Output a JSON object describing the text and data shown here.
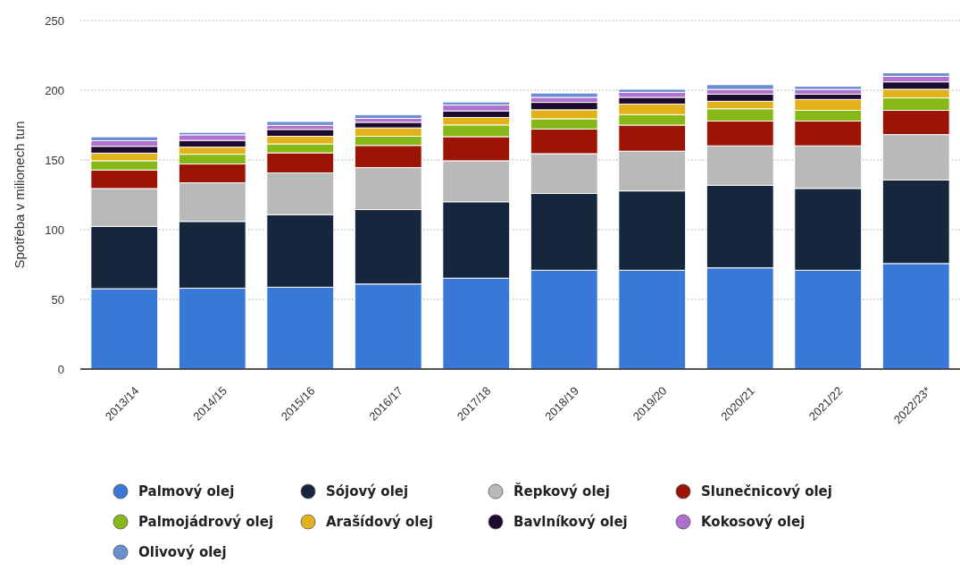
{
  "chart_data": {
    "type": "bar",
    "stacked": true,
    "ylabel": "Spotřeba v milionech tun",
    "categories": [
      "2013/14",
      "2014/15",
      "2015/16",
      "2016/17",
      "2017/18",
      "2018/19",
      "2019/20",
      "2020/21",
      "2021/22",
      "2022/23*"
    ],
    "ylim": [
      0,
      250
    ],
    "yticks": [
      0,
      50,
      100,
      150,
      200,
      250
    ],
    "grid": "y",
    "legend": "bottom",
    "series": [
      {
        "name": "Palmový olej",
        "color": "#3a78d8",
        "values": [
          57.6,
          58,
          58.7,
          61,
          65.2,
          70.9,
          70.9,
          72.6,
          70.9,
          75.7
        ]
      },
      {
        "name": "Sójový olej",
        "color": "#16263d",
        "values": [
          44.7,
          47.9,
          52,
          53.4,
          54.8,
          55.1,
          56.9,
          59.2,
          58.7,
          59.9
        ]
      },
      {
        "name": "Řepkový olej",
        "color": "#b9b9b9",
        "values": [
          27.2,
          27.7,
          30,
          30.1,
          29.4,
          28.5,
          28.5,
          28.3,
          30.5,
          32.6
        ]
      },
      {
        "name": "Slunečnicový olej",
        "color": "#9b1406",
        "values": [
          13.3,
          13.5,
          14.4,
          15.9,
          17.3,
          17.7,
          18.7,
          17.8,
          17.8,
          17.4
        ]
      },
      {
        "name": "Palmojádrový olej",
        "color": "#86b818",
        "values": [
          6.6,
          7,
          6.4,
          6.6,
          8.4,
          7.3,
          7.5,
          8.8,
          7.7,
          8.9
        ]
      },
      {
        "name": "Arašídový olej",
        "color": "#e3b21a",
        "values": [
          5.5,
          5.1,
          5.5,
          6,
          5.4,
          6.5,
          7.6,
          5.4,
          7.8,
          6.2
        ]
      },
      {
        "name": "Bavlníkový olej",
        "color": "#1e0a2e",
        "values": [
          4.9,
          4.8,
          4.9,
          4,
          4.7,
          5.3,
          4.8,
          5.1,
          3.8,
          5.3
        ]
      },
      {
        "name": "Kokosový olej",
        "color": "#b070d0",
        "values": [
          4,
          4,
          2.9,
          2.8,
          4.2,
          3.6,
          3.6,
          3.4,
          3.4,
          4
        ]
      },
      {
        "name": "Olivový olej",
        "color": "#6a8fd0",
        "values": [
          2.8,
          1.8,
          2.8,
          2.7,
          2.2,
          3.1,
          2.2,
          3.4,
          2.3,
          2.5
        ]
      }
    ]
  }
}
